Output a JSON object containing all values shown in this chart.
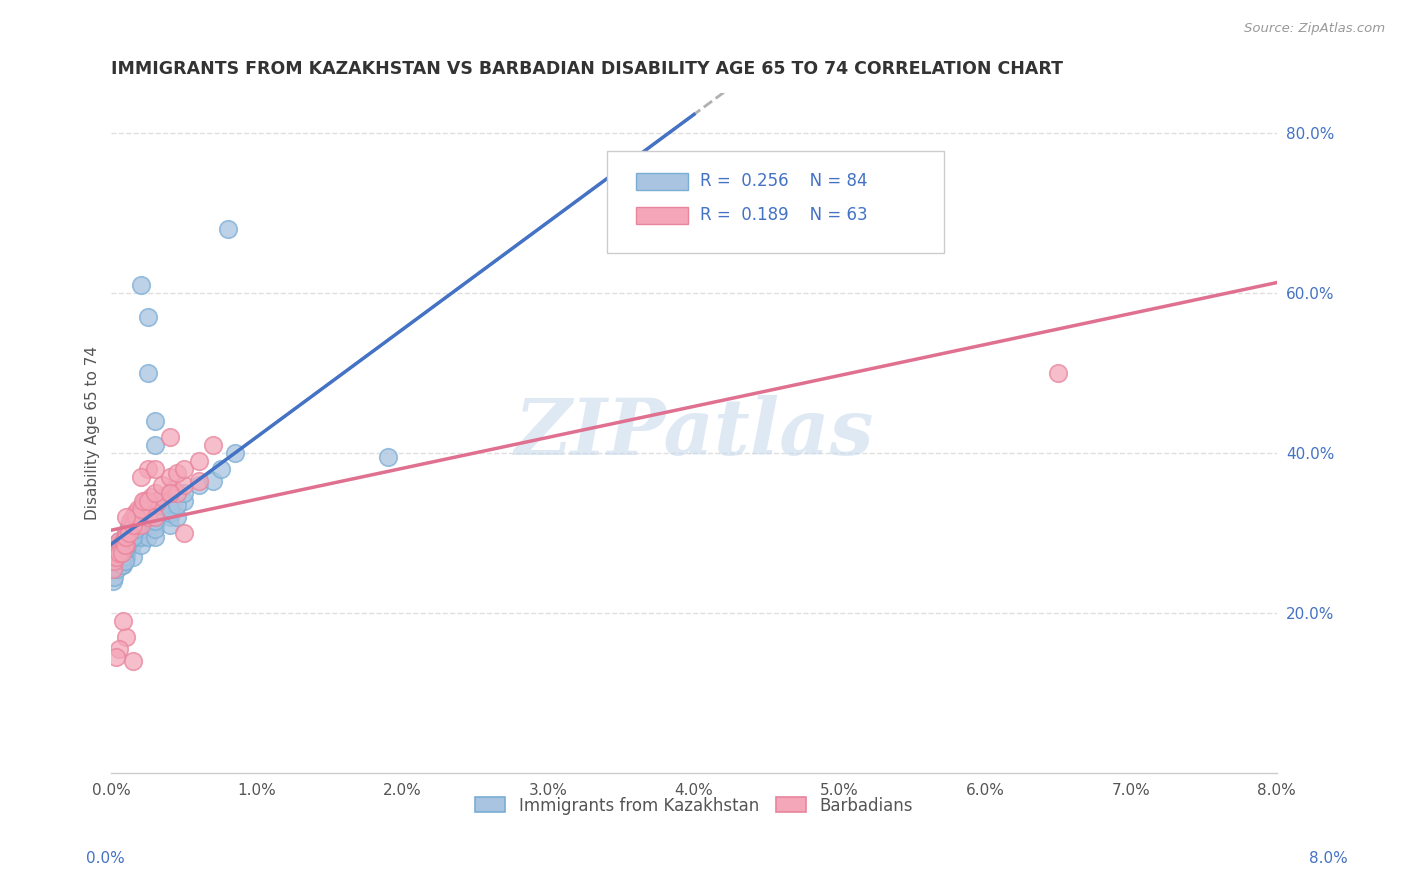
{
  "title": "IMMIGRANTS FROM KAZAKHSTAN VS BARBADIAN DISABILITY AGE 65 TO 74 CORRELATION CHART",
  "source": "Source: ZipAtlas.com",
  "ylabel": "Disability Age 65 to 74",
  "legend_label_1": "Immigrants from Kazakhstan",
  "legend_label_2": "Barbadians",
  "r1": 0.256,
  "n1": 84,
  "r2": 0.189,
  "n2": 63,
  "color1": "#a8c4e0",
  "color2": "#f4a7b9",
  "edge1": "#7aadd4",
  "edge2": "#e8849c",
  "line1_color": "#4472c4",
  "line2_color": "#e07090",
  "trendline_color": "#b0b0b0",
  "xlim": [
    0.0,
    0.08
  ],
  "ylim": [
    0.0,
    0.85
  ],
  "x_ticks": [
    0.0,
    0.01,
    0.02,
    0.03,
    0.04,
    0.05,
    0.06,
    0.07,
    0.08
  ],
  "x_tick_labels": [
    "0.0%",
    "1.0%",
    "2.0%",
    "3.0%",
    "4.0%",
    "5.0%",
    "6.0%",
    "7.0%",
    "8.0%"
  ],
  "y_ticks_right": [
    0.2,
    0.4,
    0.6,
    0.8
  ],
  "y_tick_labels_right": [
    "20.0%",
    "40.0%",
    "60.0%",
    "80.0%"
  ],
  "background_color": "#ffffff",
  "grid_color": "#d8d8d8",
  "watermark": "ZIPatlas",
  "kaz_x": [
    0.0002,
    0.0003,
    0.0004,
    0.0005,
    0.0005,
    0.0006,
    0.0007,
    0.0008,
    0.0009,
    0.001,
    0.001,
    0.001,
    0.001,
    0.0012,
    0.0013,
    0.0013,
    0.0014,
    0.0015,
    0.0015,
    0.0016,
    0.0017,
    0.0018,
    0.0019,
    0.002,
    0.002,
    0.002,
    0.002,
    0.0021,
    0.0022,
    0.0023,
    0.0024,
    0.0025,
    0.0025,
    0.0026,
    0.0027,
    0.0028,
    0.003,
    0.003,
    0.003,
    0.003,
    0.0032,
    0.0033,
    0.0035,
    0.0036,
    0.004,
    0.004,
    0.004,
    0.0042,
    0.0045,
    0.005,
    0.0001,
    0.0001,
    0.0002,
    0.0003,
    0.0004,
    0.0006,
    0.0006,
    0.0007,
    0.0008,
    0.0009,
    0.001,
    0.0011,
    0.0013,
    0.0015,
    0.0017,
    0.002,
    0.0022,
    0.0025,
    0.003,
    0.0035,
    0.004,
    0.0045,
    0.005,
    0.006,
    0.007,
    0.0075,
    0.008,
    0.019,
    0.0085,
    0.003,
    0.003,
    0.0025,
    0.0025,
    0.002
  ],
  "kaz_y": [
    0.275,
    0.26,
    0.28,
    0.29,
    0.27,
    0.28,
    0.275,
    0.26,
    0.29,
    0.27,
    0.275,
    0.28,
    0.3,
    0.31,
    0.29,
    0.305,
    0.285,
    0.295,
    0.27,
    0.31,
    0.3,
    0.295,
    0.32,
    0.3,
    0.285,
    0.31,
    0.295,
    0.305,
    0.315,
    0.325,
    0.32,
    0.33,
    0.295,
    0.31,
    0.32,
    0.335,
    0.31,
    0.32,
    0.295,
    0.305,
    0.32,
    0.33,
    0.34,
    0.325,
    0.32,
    0.31,
    0.325,
    0.335,
    0.32,
    0.34,
    0.24,
    0.255,
    0.245,
    0.265,
    0.255,
    0.27,
    0.265,
    0.26,
    0.27,
    0.265,
    0.28,
    0.285,
    0.295,
    0.295,
    0.305,
    0.315,
    0.32,
    0.33,
    0.315,
    0.335,
    0.33,
    0.335,
    0.35,
    0.36,
    0.365,
    0.38,
    0.68,
    0.395,
    0.4,
    0.41,
    0.44,
    0.5,
    0.57,
    0.61
  ],
  "bar_x": [
    0.0002,
    0.0003,
    0.0005,
    0.0006,
    0.0007,
    0.0009,
    0.001,
    0.001,
    0.0012,
    0.0013,
    0.0015,
    0.0016,
    0.0017,
    0.0018,
    0.002,
    0.002,
    0.0022,
    0.0023,
    0.0025,
    0.0025,
    0.0027,
    0.003,
    0.003,
    0.0032,
    0.0035,
    0.004,
    0.0042,
    0.0045,
    0.005,
    0.006,
    0.0001,
    0.0002,
    0.0003,
    0.0005,
    0.0007,
    0.0009,
    0.001,
    0.0012,
    0.0015,
    0.0017,
    0.002,
    0.0022,
    0.0025,
    0.003,
    0.0035,
    0.004,
    0.0045,
    0.005,
    0.006,
    0.007,
    0.065,
    0.004,
    0.0025,
    0.0015,
    0.001,
    0.0008,
    0.0005,
    0.0003,
    0.001,
    0.002,
    0.003,
    0.004,
    0.005
  ],
  "bar_y": [
    0.285,
    0.275,
    0.29,
    0.285,
    0.28,
    0.295,
    0.3,
    0.285,
    0.305,
    0.315,
    0.32,
    0.325,
    0.31,
    0.33,
    0.325,
    0.31,
    0.335,
    0.34,
    0.33,
    0.32,
    0.345,
    0.335,
    0.32,
    0.34,
    0.345,
    0.35,
    0.355,
    0.35,
    0.36,
    0.365,
    0.255,
    0.265,
    0.27,
    0.275,
    0.275,
    0.285,
    0.295,
    0.3,
    0.31,
    0.32,
    0.33,
    0.34,
    0.34,
    0.35,
    0.36,
    0.37,
    0.375,
    0.38,
    0.39,
    0.41,
    0.5,
    0.42,
    0.38,
    0.14,
    0.17,
    0.19,
    0.155,
    0.145,
    0.32,
    0.37,
    0.38,
    0.35,
    0.3
  ]
}
